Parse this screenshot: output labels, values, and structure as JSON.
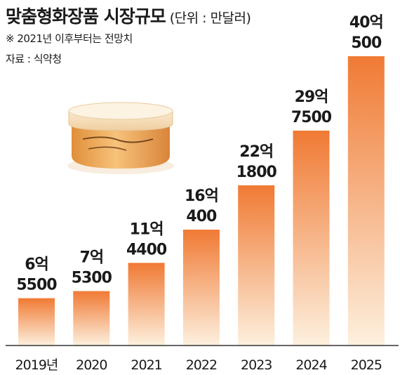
{
  "title": "맞춤형화장품 시장규모",
  "unit": "(단위 : 만달러)",
  "note": "※ 2021년 이후부터는 전망치",
  "source": "자료 : 식약청",
  "chart_data": {
    "type": "bar",
    "categories": [
      "2019년",
      "2020",
      "2021",
      "2022",
      "2023",
      "2024",
      "2025"
    ],
    "values": [
      65500,
      75300,
      114400,
      160400,
      221800,
      297500,
      400500
    ],
    "labels": [
      [
        "6억",
        "5500"
      ],
      [
        "7억",
        "5300"
      ],
      [
        "11억",
        "4400"
      ],
      [
        "16억",
        "400"
      ],
      [
        "22억",
        "1800"
      ],
      [
        "29억",
        "7500"
      ],
      [
        "40억",
        "500"
      ]
    ],
    "ylim": [
      0,
      420000
    ],
    "grid": false,
    "colors": {
      "bar_top": "#f07a34",
      "bar_bottom": "#fdf0de",
      "axis": "#333333"
    }
  },
  "illustration": "cosmetic-jar-icon"
}
